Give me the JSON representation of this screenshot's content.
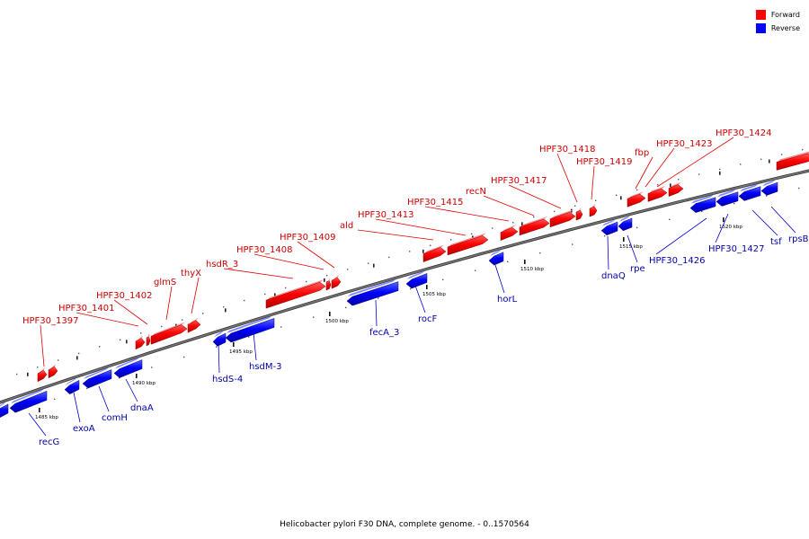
{
  "legend": {
    "forward_label": "Forward",
    "reverse_label": "Reverse",
    "forward_color": "#ff0000",
    "reverse_color": "#0000ff"
  },
  "caption": "Helicobacter pylori F30 DNA, complete genome. - 0..1570564",
  "colors": {
    "forward_label": "#cc0000",
    "reverse_label": "#0000aa",
    "backbone": "#777777"
  },
  "kbp_ticks": [
    "1485 kbp",
    "1490 kbp",
    "1495 kbp",
    "1500 kbp",
    "1505 kbp",
    "1510 kbp",
    "1515 kbp",
    "1520 kbp"
  ],
  "forward_genes": [
    "HPF30_1397",
    "HPF30_1401",
    "HPF30_1402",
    "glmS",
    "thyX",
    "hsdR_3",
    "HPF30_1408",
    "HPF30_1409",
    "ald",
    "HPF30_1413",
    "HPF30_1415",
    "recN",
    "HPF30_1417",
    "HPF30_1418",
    "HPF30_1419",
    "fbp",
    "HPF30_1423",
    "HPF30_1424"
  ],
  "reverse_genes": [
    "recG",
    "exoA",
    "comH",
    "dnaA",
    "hsdS-4",
    "hsdM-3",
    "fecA_3",
    "rocF",
    "horL",
    "dnaQ",
    "rpe",
    "HPF30_1426",
    "HPF30_1427",
    "tsf",
    "rpsB"
  ]
}
